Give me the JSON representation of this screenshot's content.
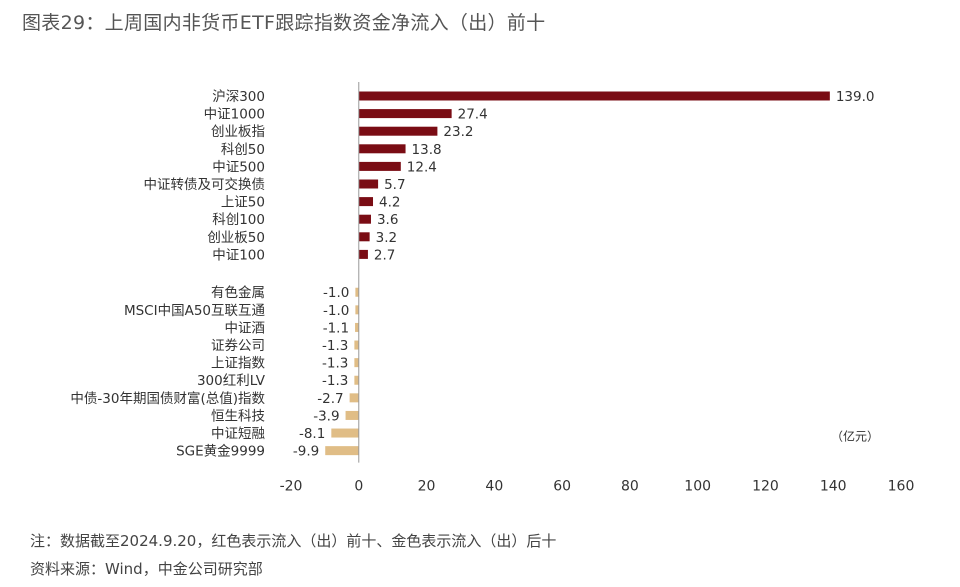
{
  "title": "图表29：上周国内非货币ETF跟踪指数资金净流入（出）前十",
  "notes": {
    "note": "注：数据截至2024.9.20，红色表示流入（出）前十、金色表示流入（出）后十",
    "source": "资料来源：Wind，中金公司研究部"
  },
  "colors": {
    "inflow": "#7a0c14",
    "outflow": "#e0bd86"
  },
  "chart_data": {
    "type": "bar",
    "orientation": "horizontal",
    "unit": "（亿元）",
    "xlim": [
      -20,
      160
    ],
    "xticks": [
      "-20",
      "0",
      "20",
      "40",
      "60",
      "80",
      "100",
      "120",
      "140",
      "160"
    ],
    "grid": false,
    "groups": [
      {
        "color_key": "inflow",
        "categories": [
          "沪深300",
          "中证1000",
          "创业板指",
          "科创50",
          "中证500",
          "中证转债及可交换债",
          "上证50",
          "科创100",
          "创业板50",
          "中证100"
        ],
        "values": [
          139.0,
          27.4,
          23.2,
          13.8,
          12.4,
          5.7,
          4.2,
          3.6,
          3.2,
          2.7
        ],
        "labels": [
          "139.0",
          "27.4",
          "23.2",
          "13.8",
          "12.4",
          "5.7",
          "4.2",
          "3.6",
          "3.2",
          "2.7"
        ]
      },
      {
        "color_key": "outflow",
        "categories": [
          "有色金属",
          "MSCI中国A50互联互通",
          "中证酒",
          "证券公司",
          "上证指数",
          "300红利LV",
          "中债-30年期国债财富(总值)指数",
          "恒生科技",
          "中证短融",
          "SGE黄金9999"
        ],
        "values": [
          -1.0,
          -1.0,
          -1.1,
          -1.3,
          -1.3,
          -1.3,
          -2.7,
          -3.9,
          -8.1,
          -9.9
        ],
        "labels": [
          "-1.0",
          "-1.0",
          "-1.1",
          "-1.3",
          "-1.3",
          "-1.3",
          "-2.7",
          "-3.9",
          "-8.1",
          "-9.9"
        ]
      }
    ]
  }
}
